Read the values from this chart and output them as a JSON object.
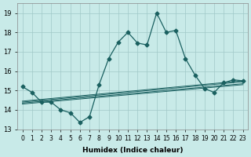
{
  "xlabel": "Humidex (Indice chaleur)",
  "ylabel": "",
  "background_color": "#c8eae8",
  "grid_color": "#a0c8c8",
  "line_color": "#1a6060",
  "xlim": [
    -0.5,
    23.5
  ],
  "ylim": [
    13,
    19.5
  ],
  "yticks": [
    13,
    14,
    15,
    16,
    17,
    18,
    19
  ],
  "xtick_labels": [
    "0",
    "1",
    "2",
    "3",
    "4",
    "5",
    "6",
    "7",
    "8",
    "9",
    "10",
    "11",
    "12",
    "13",
    "14",
    "15",
    "16",
    "17",
    "18",
    "19",
    "20",
    "21",
    "22",
    "23"
  ],
  "main_x": [
    0,
    1,
    2,
    3,
    4,
    5,
    6,
    7,
    8,
    9,
    10,
    11,
    12,
    13,
    14,
    15,
    16,
    17,
    18,
    19,
    20,
    21,
    22,
    23
  ],
  "main_y": [
    15.2,
    14.9,
    14.4,
    14.4,
    14.0,
    13.85,
    13.35,
    13.65,
    15.3,
    16.65,
    17.5,
    18.0,
    17.45,
    17.35,
    19.0,
    18.0,
    18.1,
    16.65,
    15.8,
    15.1,
    14.9,
    15.4,
    15.55,
    15.5
  ],
  "trend_lines": [
    {
      "x": [
        0,
        23
      ],
      "y": [
        14.3,
        15.3
      ]
    },
    {
      "x": [
        0,
        23
      ],
      "y": [
        14.35,
        15.35
      ]
    },
    {
      "x": [
        0,
        23
      ],
      "y": [
        14.4,
        15.45
      ]
    },
    {
      "x": [
        0,
        23
      ],
      "y": [
        14.45,
        15.5
      ]
    }
  ]
}
